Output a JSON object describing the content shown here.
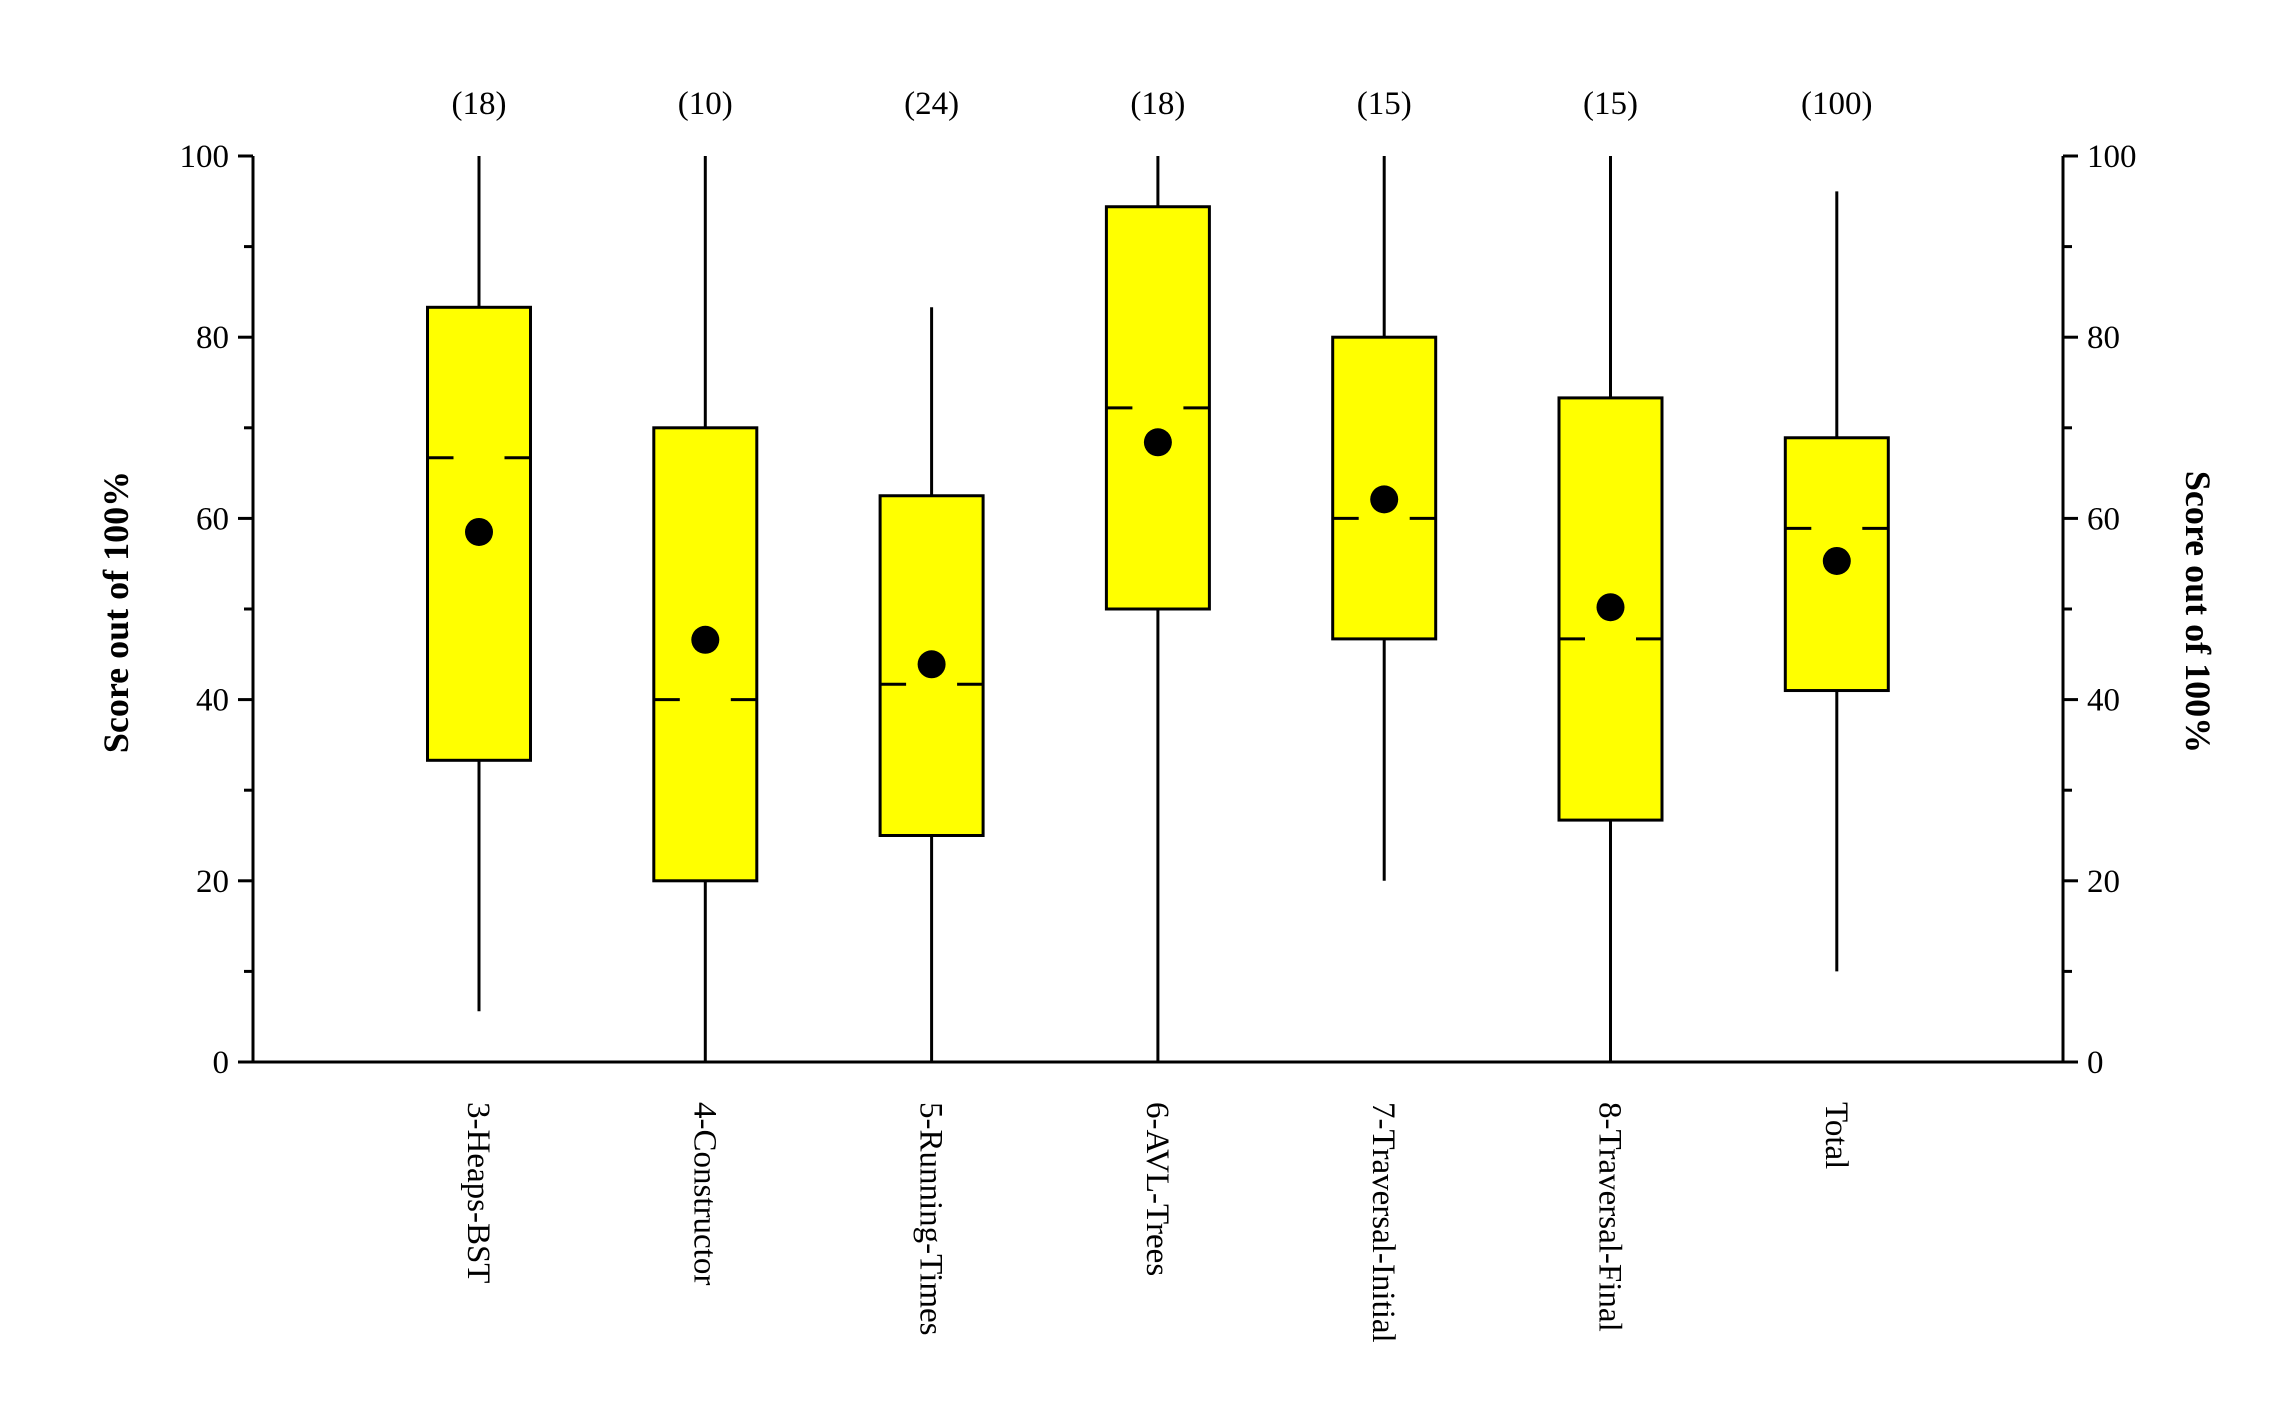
{
  "chart_data": {
    "type": "boxplot",
    "title": "",
    "xlabel": "",
    "ylabel": "Score out of 100%",
    "ylabel_right": "Score out of 100%",
    "ylim": [
      0,
      100
    ],
    "yticks": [
      0,
      20,
      40,
      60,
      80,
      100
    ],
    "yticks_minor": [
      10,
      30,
      50,
      70,
      90
    ],
    "grid": false,
    "colors": {
      "box_fill": "#ffff00",
      "stroke": "#000000",
      "mean_marker": "#000000"
    },
    "categories": [
      "3-Heaps-BST",
      "4-Constructor",
      "5-Running-Times",
      "6-AVL-Trees",
      "7-Traversal-Initial",
      "8-Traversal-Final",
      "Total"
    ],
    "counts": [
      "(18)",
      "(10)",
      "(24)",
      "(18)",
      "(15)",
      "(15)",
      "(100)"
    ],
    "series": [
      {
        "name": "3-Heaps-BST",
        "whisker_low": 5.6,
        "q1": 33.3,
        "median": 66.7,
        "q3": 83.3,
        "whisker_high": 100,
        "mean": 58.5
      },
      {
        "name": "4-Constructor",
        "whisker_low": 0,
        "q1": 20,
        "median": 40,
        "q3": 70,
        "whisker_high": 100,
        "mean": 46.6
      },
      {
        "name": "5-Running-Times",
        "whisker_low": 0,
        "q1": 25,
        "median": 41.7,
        "q3": 62.5,
        "whisker_high": 83.3,
        "mean": 43.9
      },
      {
        "name": "6-AVL-Trees",
        "whisker_low": 0,
        "q1": 50,
        "median": 72.2,
        "q3": 94.4,
        "whisker_high": 100,
        "mean": 68.4
      },
      {
        "name": "7-Traversal-Initial",
        "whisker_low": 20,
        "q1": 46.7,
        "median": 60,
        "q3": 80,
        "whisker_high": 100,
        "mean": 62.1
      },
      {
        "name": "8-Traversal-Final",
        "whisker_low": 0,
        "q1": 26.7,
        "median": 46.7,
        "q3": 73.3,
        "whisker_high": 100,
        "mean": 50.2
      },
      {
        "name": "Total",
        "whisker_low": 10,
        "q1": 41,
        "median": 58.9,
        "q3": 68.9,
        "whisker_high": 96.1,
        "mean": 55.3
      }
    ]
  }
}
